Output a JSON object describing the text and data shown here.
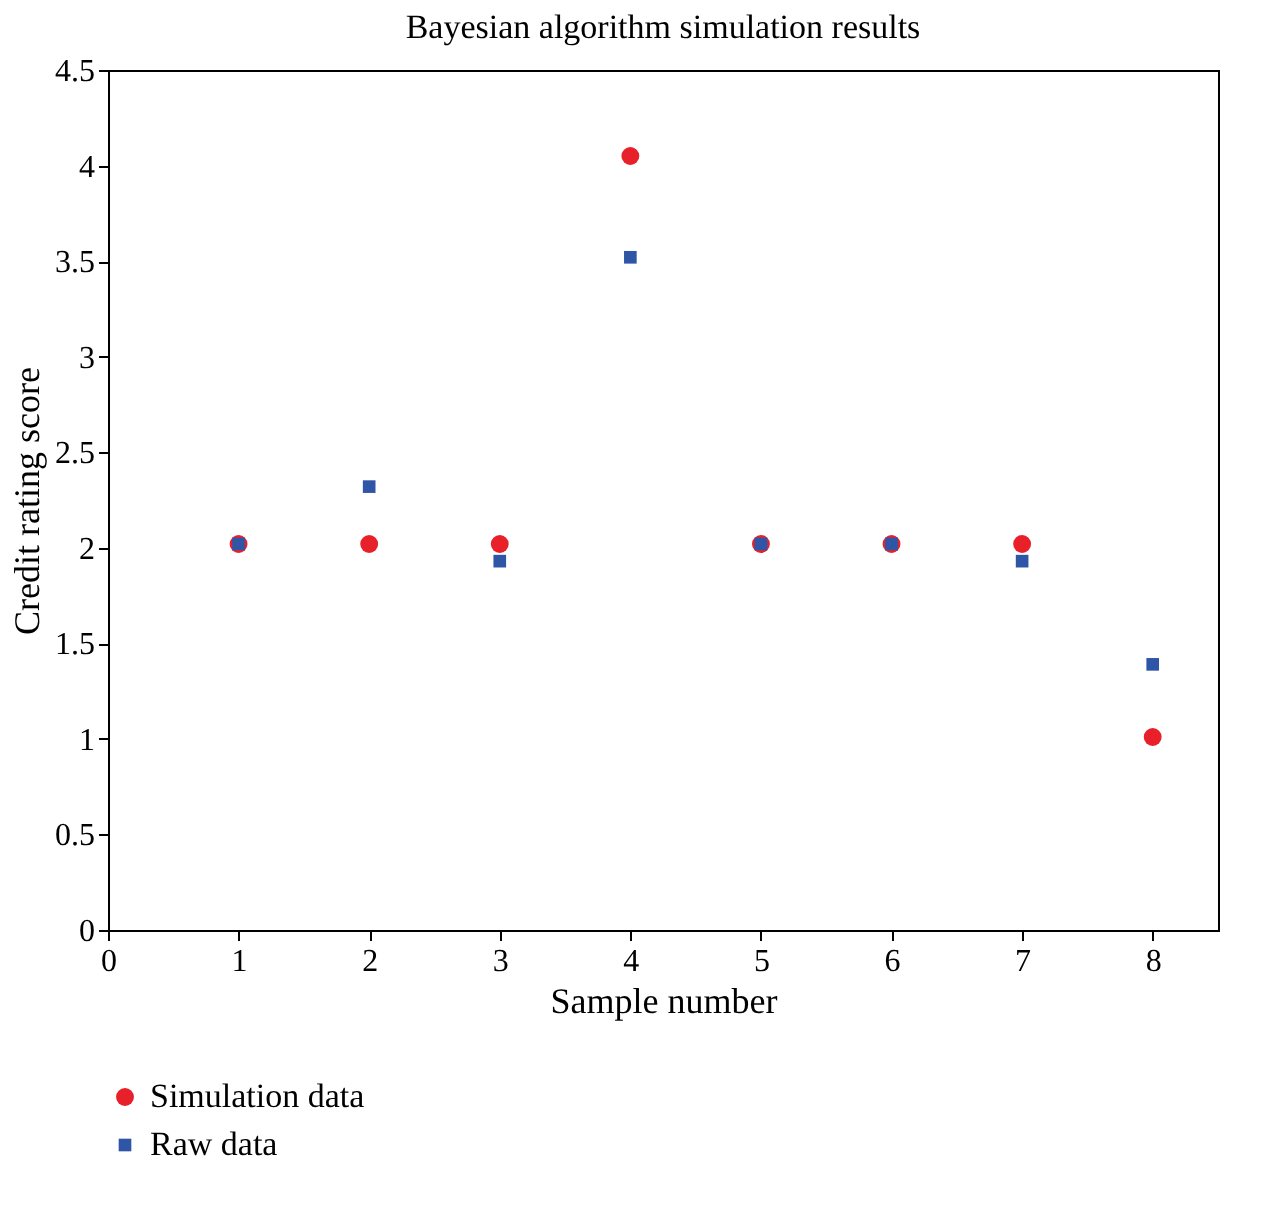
{
  "chart_data": {
    "type": "scatter",
    "title": "Bayesian algorithm simulation results",
    "xlabel": "Sample number",
    "ylabel": "Credit rating score",
    "x": [
      1,
      2,
      3,
      4,
      5,
      6,
      7,
      8
    ],
    "series": [
      {
        "name": "Simulation data",
        "color": "#e8202a",
        "marker": "circle",
        "values": [
          2.02,
          2.02,
          2.02,
          4.05,
          2.02,
          2.02,
          2.02,
          1.01
        ]
      },
      {
        "name": "Raw data",
        "color": "#2f56a6",
        "marker": "square",
        "values": [
          2.02,
          2.32,
          1.93,
          3.52,
          2.02,
          2.02,
          1.93,
          1.39
        ]
      }
    ],
    "xlim": [
      0,
      8.5
    ],
    "xticks": [
      0,
      1,
      2,
      3,
      4,
      5,
      6,
      7,
      8
    ],
    "ylim": [
      0,
      4.5
    ],
    "yticks": [
      0,
      0.5,
      1,
      1.5,
      2,
      2.5,
      3,
      3.5,
      4,
      4.5
    ],
    "grid": false,
    "legend": "bottom left"
  }
}
